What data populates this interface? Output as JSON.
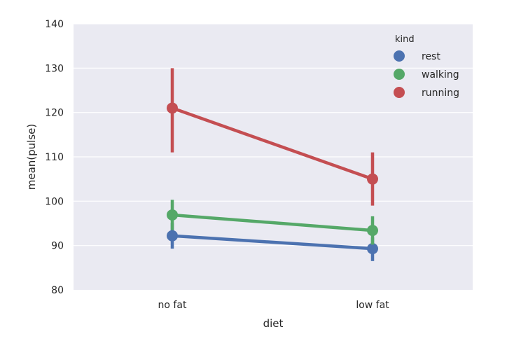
{
  "chart_data": {
    "type": "line",
    "xlabel": "diet",
    "ylabel": "mean(pulse)",
    "categories": [
      "no fat",
      "low fat"
    ],
    "ylim": [
      80,
      140
    ],
    "yticks": [
      80,
      90,
      100,
      110,
      120,
      130,
      140
    ],
    "grid": true,
    "legend": {
      "title": "kind",
      "position": "top-right"
    },
    "series": [
      {
        "name": "rest",
        "color": "#4c72b0",
        "values": [
          92.2,
          89.3
        ],
        "ci": [
          [
            89.3,
            95.1
          ],
          [
            86.5,
            91.8
          ]
        ]
      },
      {
        "name": "walking",
        "color": "#55a868",
        "values": [
          96.9,
          93.4
        ],
        "ci": [
          [
            93.5,
            100.3
          ],
          [
            90.2,
            96.6
          ]
        ]
      },
      {
        "name": "running",
        "color": "#c44e52",
        "values": [
          121.0,
          105.0
        ],
        "ci": [
          [
            111.0,
            130.0
          ],
          [
            99.0,
            111.0
          ]
        ]
      }
    ]
  }
}
